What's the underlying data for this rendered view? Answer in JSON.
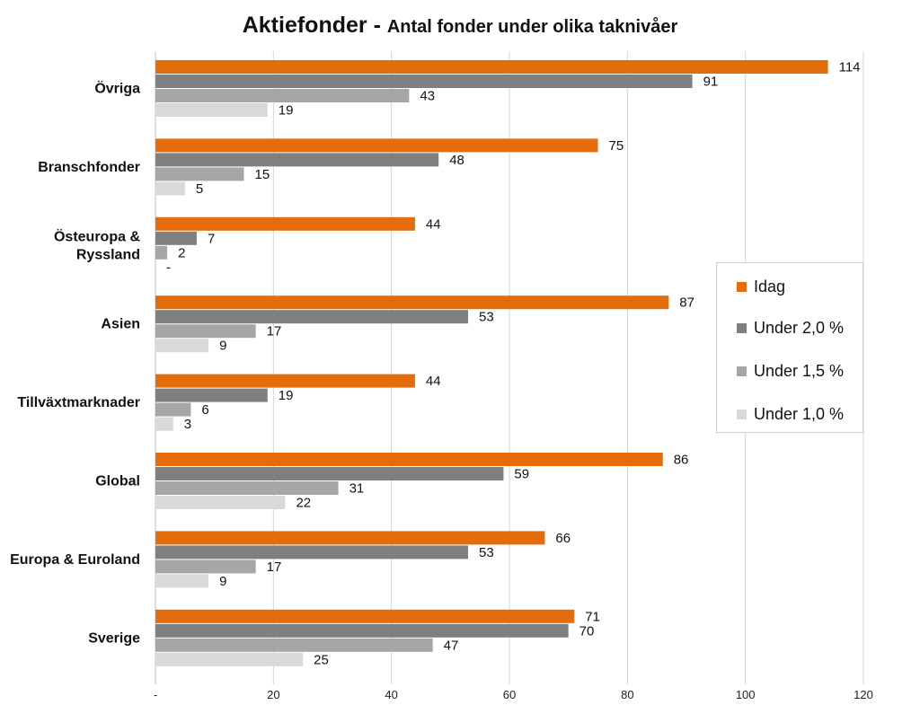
{
  "chart_data": {
    "type": "bar",
    "orientation": "horizontal",
    "title_main": "Aktiefonder",
    "title_sep": " - ",
    "title_sub": "Antal fonder under olika taknivåer",
    "categories": [
      "Övriga",
      "Branschfonder",
      "Östeuropa & Ryssland",
      "Asien",
      "Tillväxtmarknader",
      "Global",
      "Europa & Euroland",
      "Sverige"
    ],
    "series": [
      {
        "name": "Idag",
        "color": "#E46C0A",
        "values": [
          114,
          75,
          44,
          87,
          44,
          86,
          66,
          71
        ],
        "labels": [
          "114",
          "75",
          "44",
          "87",
          "44",
          "86",
          "66",
          "71"
        ]
      },
      {
        "name": "Under 2,0 %",
        "color": "#7F7F7F",
        "values": [
          91,
          48,
          7,
          53,
          19,
          59,
          53,
          70
        ],
        "labels": [
          "91",
          "48",
          "7",
          "53",
          "19",
          "59",
          "53",
          "70"
        ]
      },
      {
        "name": "Under 1,5 %",
        "color": "#A6A6A6",
        "values": [
          43,
          15,
          2,
          17,
          6,
          31,
          17,
          47
        ],
        "labels": [
          "43",
          "15",
          "2",
          "17",
          "6",
          "31",
          "17",
          "47"
        ]
      },
      {
        "name": "Under 1,0 %",
        "color": "#D9D9D9",
        "values": [
          19,
          5,
          0,
          9,
          3,
          22,
          9,
          25
        ],
        "labels": [
          "19",
          "5",
          "-",
          "9",
          "3",
          "22",
          "9",
          "25"
        ]
      }
    ],
    "xlim": [
      0,
      120
    ],
    "xticks": [
      0,
      20,
      40,
      60,
      80,
      100,
      120
    ],
    "xtick_labels": [
      "-",
      "20",
      "40",
      "60",
      "80",
      "100",
      "120"
    ],
    "grid": "vertical",
    "legend_position": "right"
  }
}
